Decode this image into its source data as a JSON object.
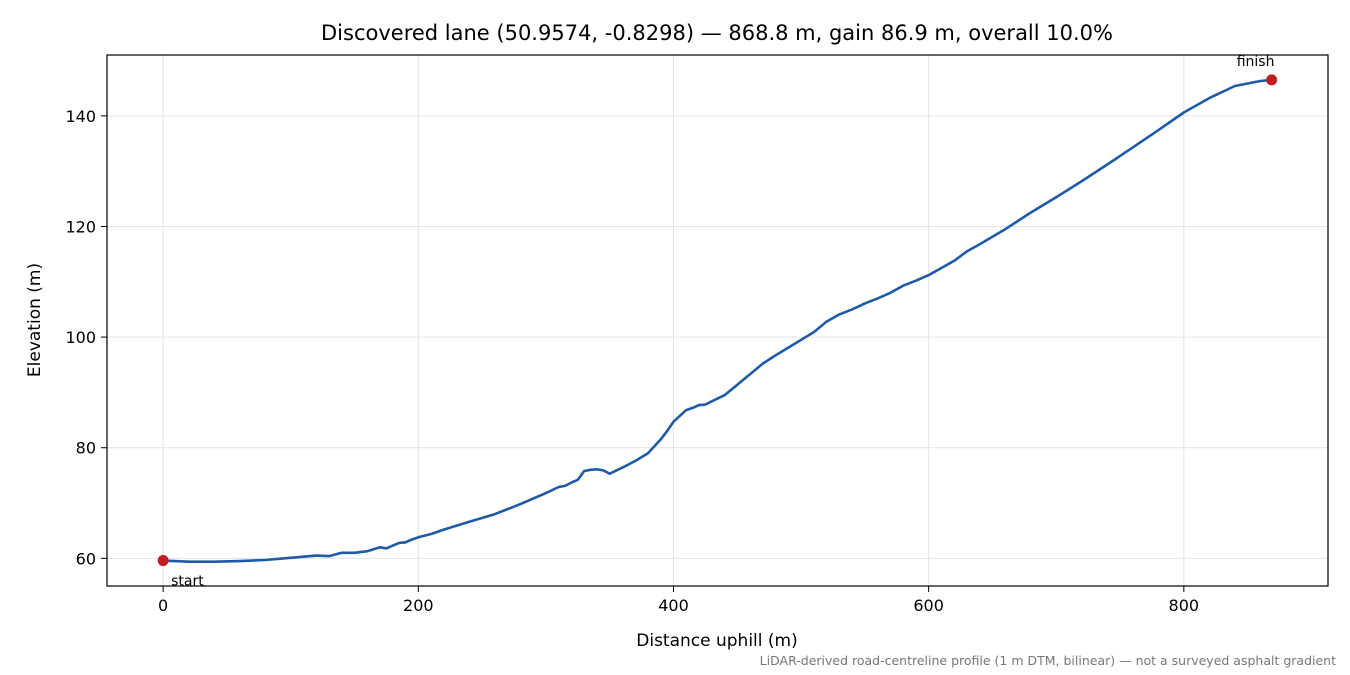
{
  "chart_data": {
    "type": "line",
    "title": "Discovered lane (50.9574, -0.8298) — 868.8 m, gain 86.9 m, overall 10.0%",
    "xlabel": "Distance uphill (m)",
    "ylabel": "Elevation (m)",
    "xlim": [
      -44,
      913
    ],
    "ylim": [
      55,
      151
    ],
    "xticks": [
      0,
      200,
      400,
      600,
      800
    ],
    "yticks": [
      60,
      80,
      100,
      120,
      140
    ],
    "grid": true,
    "series": [
      {
        "color": "#1f5aa6",
        "x": [
          0,
          20,
          40,
          60,
          80,
          100,
          110,
          120,
          130,
          140,
          150,
          160,
          170,
          175,
          180,
          185,
          190,
          195,
          200,
          210,
          220,
          240,
          260,
          280,
          300,
          310,
          315,
          320,
          325,
          330,
          335,
          340,
          345,
          350,
          360,
          370,
          380,
          390,
          395,
          400,
          410,
          415,
          420,
          425,
          430,
          440,
          450,
          460,
          470,
          480,
          490,
          500,
          510,
          520,
          530,
          540,
          550,
          560,
          570,
          580,
          590,
          600,
          610,
          620,
          630,
          640,
          660,
          680,
          700,
          720,
          740,
          760,
          780,
          800,
          820,
          840,
          860,
          868.8
        ],
        "y": [
          59.6,
          59.4,
          59.4,
          59.5,
          59.7,
          60.1,
          60.3,
          60.5,
          60.4,
          61.0,
          61.0,
          61.3,
          62.0,
          61.8,
          62.3,
          62.8,
          62.9,
          63.4,
          63.8,
          64.4,
          65.2,
          66.6,
          68.0,
          69.8,
          71.8,
          72.9,
          73.1,
          73.7,
          74.2,
          75.8,
          76.0,
          76.1,
          75.9,
          75.3,
          76.4,
          77.6,
          79.0,
          81.5,
          83.0,
          84.7,
          86.8,
          87.2,
          87.7,
          87.8,
          88.4,
          89.5,
          91.4,
          93.3,
          95.2,
          96.7,
          98.1,
          99.5,
          100.9,
          102.8,
          104.1,
          105.0,
          106.1,
          107.0,
          108.0,
          109.3,
          110.2,
          111.2,
          112.5,
          113.8,
          115.5,
          116.8,
          119.5,
          122.5,
          125.3,
          128.2,
          131.2,
          134.3,
          137.4,
          140.6,
          143.2,
          145.4,
          146.3,
          146.5
        ]
      }
    ],
    "markers": [
      {
        "x": 0,
        "y": 59.6,
        "label": "start",
        "color": "#c21d23"
      },
      {
        "x": 868.8,
        "y": 146.5,
        "label": "finish",
        "color": "#c21d23"
      }
    ],
    "footnote": "LiDAR-derived road-centreline profile (1 m DTM, bilinear) — not a surveyed asphalt gradient"
  }
}
